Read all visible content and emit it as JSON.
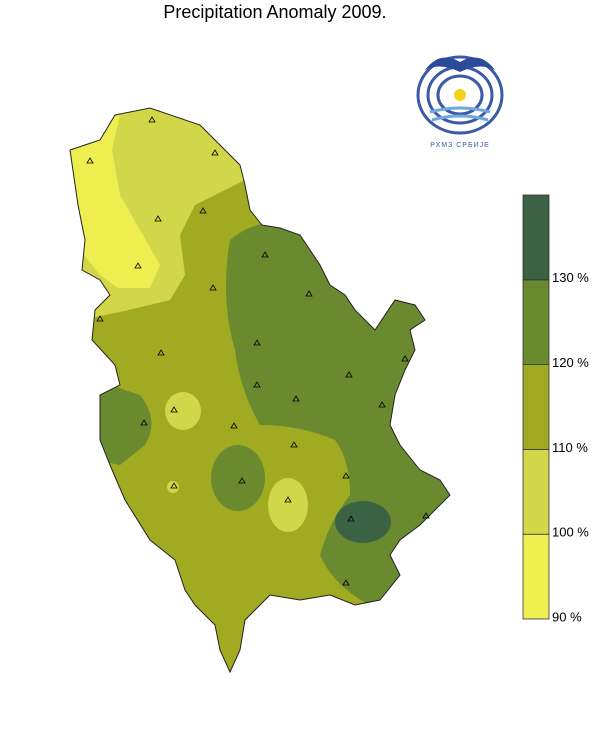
{
  "title": "Precipitation Anomaly 2009.",
  "logo": {
    "text": "РХМЗ СРБИЈЕ"
  },
  "legend": {
    "ticks": [
      {
        "value": 90,
        "label": "90 %"
      },
      {
        "value": 100,
        "label": "100 %"
      },
      {
        "value": 110,
        "label": "110 %"
      },
      {
        "value": 120,
        "label": "120 %"
      },
      {
        "value": 130,
        "label": "130 %"
      }
    ],
    "colors": [
      "#eeee50",
      "#d2d74a",
      "#a0ab22",
      "#6a8a30",
      "#3c6244"
    ]
  }
}
